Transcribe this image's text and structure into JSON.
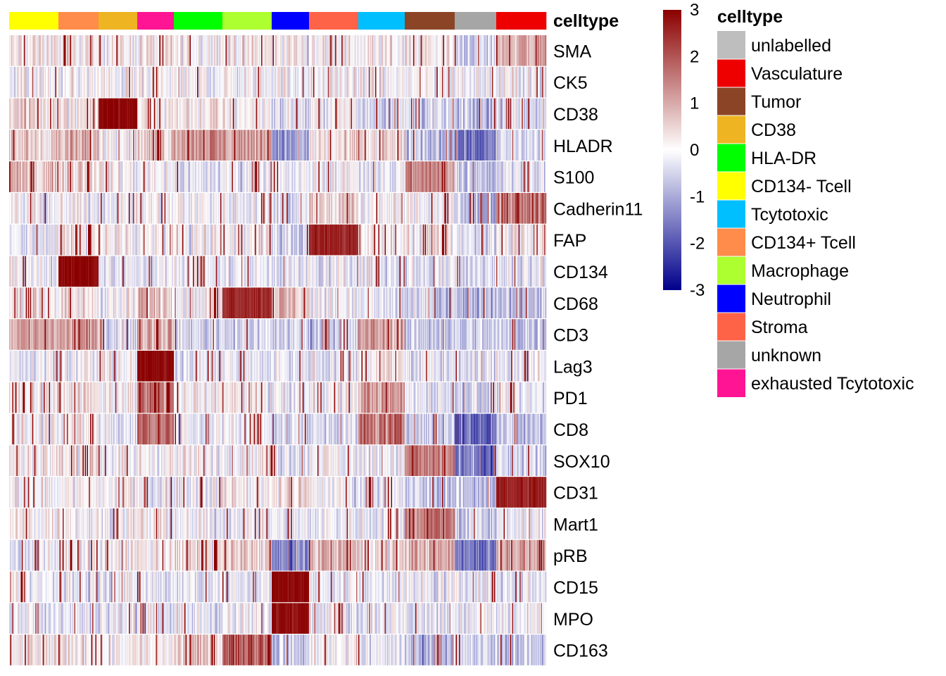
{
  "chart_data": {
    "type": "heatmap",
    "annotation": {
      "title": "celltype",
      "groups": [
        {
          "label": "CD134- Tcell",
          "color": "#FFFF00",
          "width": 70
        },
        {
          "label": "CD134+ Tcell",
          "color": "#FF8C4A",
          "width": 57
        },
        {
          "label": "CD38",
          "color": "#EEB421",
          "width": 55
        },
        {
          "label": "exhausted Tcytotoxic",
          "color": "#FF1493",
          "width": 52
        },
        {
          "label": "HLA-DR",
          "color": "#00FF00",
          "width": 69
        },
        {
          "label": "Macrophage",
          "color": "#ADFF2F",
          "width": 70
        },
        {
          "label": "Neutrophil",
          "color": "#0000FF",
          "width": 53
        },
        {
          "label": "Stroma",
          "color": "#FF6347",
          "width": 70
        },
        {
          "label": "Tcytotoxic",
          "color": "#00BFFF",
          "width": 66
        },
        {
          "label": "Tumor",
          "color": "#8B4526",
          "width": 71
        },
        {
          "label": "unknown",
          "color": "#A6A6A6",
          "width": 59
        },
        {
          "label": "Vasculature",
          "color": "#EE0000",
          "width": 71
        }
      ]
    },
    "markers": [
      "SMA",
      "CK5",
      "CD38",
      "HLADR",
      "S100",
      "Cadherin11",
      "FAP",
      "CD134",
      "CD68",
      "CD3",
      "Lag3",
      "PD1",
      "CD8",
      "SOX10",
      "CD31",
      "Mart1",
      "pRB",
      "CD15",
      "MPO",
      "CD163"
    ],
    "group_means": [
      [
        0.2,
        0.2,
        0.2,
        0.3,
        0.2,
        0.2,
        0.2,
        0.2,
        0.1,
        0.2,
        -0.5,
        1.0
      ],
      [
        0.0,
        0.0,
        0.0,
        0.0,
        0.0,
        0.0,
        0.0,
        0.0,
        0.0,
        0.0,
        0.0,
        0.0
      ],
      [
        0.5,
        0.4,
        3.0,
        0.3,
        0.3,
        0.2,
        -0.3,
        0.0,
        -0.4,
        -0.5,
        -0.8,
        -0.3
      ],
      [
        0.6,
        0.8,
        0.2,
        0.6,
        1.3,
        1.2,
        -1.2,
        0.3,
        0.4,
        -0.7,
        -1.6,
        -0.4
      ],
      [
        0.7,
        0.7,
        0.1,
        0.1,
        -0.3,
        -0.1,
        -0.3,
        0.0,
        -0.2,
        1.4,
        -0.6,
        -0.2
      ],
      [
        -0.1,
        0.0,
        0.0,
        0.0,
        0.0,
        0.0,
        -0.3,
        0.5,
        0.0,
        0.0,
        -0.8,
        1.6
      ],
      [
        -0.2,
        0.2,
        0.2,
        0.0,
        0.0,
        0.1,
        -0.5,
        2.6,
        0.2,
        0.1,
        -0.4,
        0.2
      ],
      [
        -0.1,
        3.0,
        -0.2,
        -0.2,
        -0.2,
        -0.2,
        -0.3,
        -0.2,
        -0.2,
        -0.3,
        -0.3,
        -0.2
      ],
      [
        0.3,
        0.3,
        0.0,
        0.8,
        0.0,
        2.6,
        0.8,
        0.0,
        -0.3,
        -0.7,
        -0.9,
        -0.6
      ],
      [
        1.1,
        1.1,
        -0.2,
        1.1,
        -0.4,
        -0.4,
        -0.5,
        -0.6,
        1.1,
        -0.6,
        -0.6,
        -0.6
      ],
      [
        -0.1,
        -0.1,
        -0.1,
        3.0,
        -0.2,
        -0.2,
        -0.2,
        -0.2,
        0.3,
        -0.3,
        -0.4,
        -0.2
      ],
      [
        0.3,
        0.3,
        0.1,
        1.5,
        0.1,
        0.1,
        -0.2,
        0.0,
        1.2,
        -0.2,
        -0.5,
        -0.3
      ],
      [
        0.1,
        0.1,
        -0.2,
        1.8,
        -0.2,
        -0.2,
        -0.4,
        -0.4,
        1.6,
        -0.5,
        -1.8,
        -0.6
      ],
      [
        0.3,
        0.3,
        0.1,
        0.1,
        0.0,
        0.1,
        -0.2,
        0.0,
        -0.1,
        1.5,
        -1.8,
        -0.5
      ],
      [
        0.1,
        0.1,
        0.0,
        0.0,
        0.0,
        0.2,
        0.5,
        0.0,
        -0.3,
        -0.6,
        -0.7,
        2.6
      ],
      [
        0.2,
        0.2,
        0.1,
        0.1,
        -0.1,
        0.0,
        -0.2,
        -0.1,
        -0.1,
        1.6,
        -0.6,
        -0.2
      ],
      [
        -0.3,
        0.2,
        0.1,
        0.3,
        0.3,
        0.6,
        -1.6,
        0.9,
        0.4,
        1.0,
        -1.5,
        1.1
      ],
      [
        -0.2,
        -0.2,
        -0.2,
        -0.2,
        -0.2,
        -0.2,
        3.0,
        -0.2,
        -0.2,
        -0.2,
        -0.2,
        -0.2
      ],
      [
        -0.2,
        -0.2,
        -0.2,
        -0.2,
        -0.2,
        -0.2,
        3.0,
        -0.2,
        -0.2,
        -0.2,
        -0.2,
        -0.2
      ],
      [
        0.3,
        0.3,
        0.2,
        0.2,
        0.6,
        2.0,
        -0.6,
        0.2,
        -0.2,
        -0.8,
        -0.6,
        -0.6
      ]
    ],
    "color_scale": {
      "stops": [
        {
          "value": -3,
          "color": "#00008B"
        },
        {
          "value": 0,
          "color": "#FFFFFF"
        },
        {
          "value": 3,
          "color": "#8B0000"
        }
      ],
      "ticks": [
        "3",
        "2",
        "1",
        "0",
        "-1",
        "-2",
        "-3"
      ]
    },
    "legend": {
      "title": "celltype",
      "placement": "right",
      "entries": [
        {
          "label": "unlabelled",
          "color": "#BEBEBE"
        },
        {
          "label": "Vasculature",
          "color": "#EE0000"
        },
        {
          "label": "Tumor",
          "color": "#8B4526"
        },
        {
          "label": "CD38",
          "color": "#EEB421"
        },
        {
          "label": "HLA-DR",
          "color": "#00FF00"
        },
        {
          "label": "CD134- Tcell",
          "color": "#FFFF00"
        },
        {
          "label": "Tcytotoxic",
          "color": "#00BFFF"
        },
        {
          "label": "CD134+ Tcell",
          "color": "#FF8C4A"
        },
        {
          "label": "Macrophage",
          "color": "#ADFF2F"
        },
        {
          "label": "Neutrophil",
          "color": "#0000FF"
        },
        {
          "label": "Stroma",
          "color": "#FF6347"
        },
        {
          "label": "unknown",
          "color": "#A6A6A6"
        },
        {
          "label": "exhausted Tcytotoxic",
          "color": "#FF1493"
        }
      ]
    }
  }
}
